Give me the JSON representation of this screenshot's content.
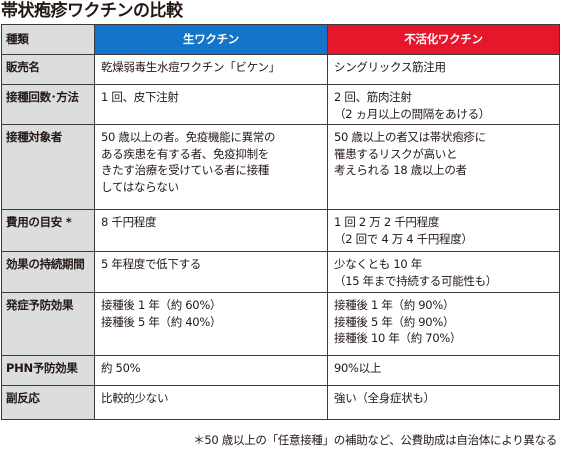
{
  "title": "帯状疱疹ワクチンの比較",
  "header": {
    "label": "種類",
    "live": "生ワクチン",
    "inactivated": "不活化ワクチン"
  },
  "rows": [
    {
      "label": "販売名",
      "live": [
        "乾燥弱毒生水痘ワクチン「ビケン」"
      ],
      "inactivated": [
        "シングリックス筋注用"
      ]
    },
    {
      "label": "接種回数･方法",
      "live": [
        "1 回、皮下注射"
      ],
      "inactivated": [
        "2 回、筋肉注射",
        "（2 ヵ月以上の間隔をあける）"
      ]
    },
    {
      "label": "接種対象者",
      "live": [
        "50 歳以上の者。免疫機能に異常の",
        "ある疾患を有する者、免疫抑制を",
        "きたす治療を受けている者に接種",
        "してはならない"
      ],
      "inactivated": [
        "50 歳以上の者又は帯状疱疹に",
        "罹患するリスクが高いと",
        "考えられる 18 歳以上の者"
      ]
    },
    {
      "label": "費用の目安 *",
      "live": [
        "8 千円程度"
      ],
      "inactivated": [
        "1 回 2 万 2 千円程度",
        "（2 回で 4 万 4 千円程度）"
      ]
    },
    {
      "label": "効果の持続期間",
      "live": [
        "5 年程度で低下する"
      ],
      "inactivated": [
        "少なくとも 10 年",
        "（15 年まで持続する可能性も）"
      ]
    },
    {
      "label": "発症予防効果",
      "live": [
        "接種後 1 年（約 60%）",
        "接種後 5 年（約 40%）"
      ],
      "inactivated": [
        "接種後 1 年（約 90%）",
        "接種後 5 年（約 90%）",
        "接種後 10 年（約 70%）"
      ]
    },
    {
      "label": "PHN予防効果",
      "live": [
        "約 50%"
      ],
      "inactivated": [
        "90%以上"
      ]
    },
    {
      "label": "副反応",
      "live": [
        "比較的少ない"
      ],
      "inactivated": [
        "強い（全身症状も）"
      ]
    }
  ],
  "footnote": "＊50 歳以上の「任意接種」の補助など、公費助成は自治体により異なる",
  "colors": {
    "live_header": "#1474c9",
    "inactivated_header": "#e6172b",
    "label_bg": "#dcdddd"
  }
}
